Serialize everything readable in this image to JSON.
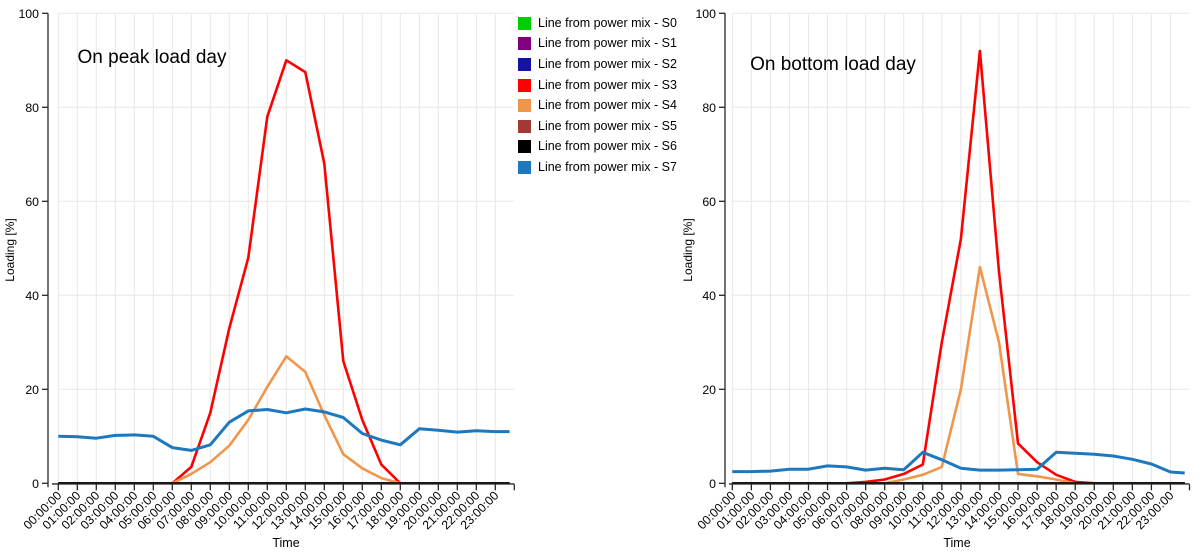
{
  "legend": {
    "position": "top-center-between-charts",
    "items": [
      {
        "id": "S0",
        "label": "Line from power mix - S0",
        "color": "#00CC00"
      },
      {
        "id": "S1",
        "label": "Line from power mix - S1",
        "color": "#800080"
      },
      {
        "id": "S2",
        "label": "Line from power mix - S2",
        "color": "#1512A8"
      },
      {
        "id": "S3",
        "label": "Line from power mix - S3",
        "color": "#FF0000"
      },
      {
        "id": "S4",
        "label": "Line from power mix - S4",
        "color": "#F0964C"
      },
      {
        "id": "S5",
        "label": "Line from power mix - S5",
        "color": "#A13A34"
      },
      {
        "id": "S6",
        "label": "Line from power mix - S6",
        "color": "#000000"
      },
      {
        "id": "S7",
        "label": "Line from power mix - S7",
        "color": "#1D78BE"
      }
    ]
  },
  "chart_data": [
    {
      "id": "peak-load-day-chart",
      "type": "line",
      "title": "On peak load day",
      "xlabel": "Time",
      "ylabel": "Loading [%]",
      "ylim": [
        0,
        100
      ],
      "xlim_hours": [
        0,
        24
      ],
      "grid": true,
      "yticks": [
        0,
        20,
        40,
        60,
        80,
        100
      ],
      "xticklabels": [
        "00:00:00",
        "01:00:00",
        "02:00:00",
        "03:00:00",
        "04:00:00",
        "05:00:00",
        "06:00:00",
        "07:00:00",
        "08:00:00",
        "09:00:00",
        "10:00:00",
        "11:00:00",
        "12:00:00",
        "13:00:00",
        "14:00:00",
        "15:00:00",
        "16:00:00",
        "17:00:00",
        "18:00:00",
        "19:00:00",
        "20:00:00",
        "21:00:00",
        "22:00:00",
        "23:00:00"
      ],
      "series": [
        {
          "id": "S0",
          "name": "Line from power mix - S0",
          "color": "#00CC00",
          "points": [
            [
              0,
              0
            ],
            [
              23.75,
              0
            ]
          ]
        },
        {
          "id": "S1",
          "name": "Line from power mix - S1",
          "color": "#800080",
          "points": [
            [
              0,
              0
            ],
            [
              23.75,
              0
            ]
          ]
        },
        {
          "id": "S2",
          "name": "Line from power mix - S2",
          "color": "#1512A8",
          "points": [
            [
              0,
              0
            ],
            [
              23.75,
              0
            ]
          ]
        },
        {
          "id": "S3",
          "name": "Line from power mix - S3",
          "color": "#FF0000",
          "points": [
            [
              6,
              0
            ],
            [
              7,
              3.5
            ],
            [
              8,
              15
            ],
            [
              9,
              33
            ],
            [
              10,
              48
            ],
            [
              11,
              78
            ],
            [
              12,
              90
            ],
            [
              13,
              87.5
            ],
            [
              14,
              68
            ],
            [
              15,
              26
            ],
            [
              16,
              13.5
            ],
            [
              17,
              4
            ],
            [
              18,
              0
            ]
          ]
        },
        {
          "id": "S4",
          "name": "Line from power mix - S4",
          "color": "#F0964C",
          "points": [
            [
              6,
              0
            ],
            [
              7,
              2
            ],
            [
              8,
              4.5
            ],
            [
              9,
              8
            ],
            [
              10,
              13.5
            ],
            [
              11,
              20.5
            ],
            [
              12,
              27
            ],
            [
              13,
              23.7
            ],
            [
              14,
              14.5
            ],
            [
              15,
              6.2
            ],
            [
              16,
              3.2
            ],
            [
              17,
              1.1
            ],
            [
              18,
              0
            ]
          ]
        },
        {
          "id": "S5",
          "name": "Line from power mix - S5",
          "color": "#A13A34",
          "points": [
            [
              0,
              0
            ],
            [
              23.75,
              0
            ]
          ]
        },
        {
          "id": "S6",
          "name": "Line from power mix - S6",
          "color": "#000000",
          "points": [
            [
              0,
              0
            ],
            [
              23.75,
              0
            ]
          ]
        },
        {
          "id": "S7",
          "name": "Line from power mix - S7",
          "color": "#1D78BE",
          "points": [
            [
              0,
              10
            ],
            [
              1,
              9.9
            ],
            [
              2,
              9.6
            ],
            [
              3,
              10.2
            ],
            [
              4,
              10.3
            ],
            [
              5,
              10
            ],
            [
              6,
              7.6
            ],
            [
              7,
              7
            ],
            [
              8,
              8.2
            ],
            [
              9,
              13
            ],
            [
              10,
              15.4
            ],
            [
              11,
              15.7
            ],
            [
              12,
              15
            ],
            [
              13,
              15.8
            ],
            [
              14,
              15.2
            ],
            [
              15,
              14
            ],
            [
              16,
              10.6
            ],
            [
              17,
              9.2
            ],
            [
              18,
              8.2
            ],
            [
              19,
              11.6
            ],
            [
              20,
              11.3
            ],
            [
              21,
              10.9
            ],
            [
              22,
              11.2
            ],
            [
              23,
              11
            ],
            [
              23.75,
              11
            ]
          ]
        }
      ]
    },
    {
      "id": "bottom-load-day-chart",
      "type": "line",
      "title": "On bottom load day",
      "xlabel": "Time",
      "ylabel": "Loading [%]",
      "ylim": [
        0,
        100
      ],
      "xlim_hours": [
        0,
        24
      ],
      "grid": true,
      "yticks": [
        0,
        20,
        40,
        60,
        80,
        100
      ],
      "xticklabels": [
        "00:00:00",
        "01:00:00",
        "02:00:00",
        "03:00:00",
        "04:00:00",
        "05:00:00",
        "06:00:00",
        "07:00:00",
        "08:00:00",
        "09:00:00",
        "10:00:00",
        "11:00:00",
        "12:00:00",
        "13:00:00",
        "14:00:00",
        "15:00:00",
        "16:00:00",
        "17:00:00",
        "18:00:00",
        "19:00:00",
        "20:00:00",
        "21:00:00",
        "22:00:00",
        "23:00:00"
      ],
      "series": [
        {
          "id": "S0",
          "name": "Line from power mix - S0",
          "color": "#00CC00",
          "points": [
            [
              0,
              0
            ],
            [
              23.75,
              0
            ]
          ]
        },
        {
          "id": "S1",
          "name": "Line from power mix - S1",
          "color": "#800080",
          "points": [
            [
              0,
              0
            ],
            [
              23.75,
              0
            ]
          ]
        },
        {
          "id": "S2",
          "name": "Line from power mix - S2",
          "color": "#1512A8",
          "points": [
            [
              0,
              0
            ],
            [
              23.75,
              0
            ]
          ]
        },
        {
          "id": "S3",
          "name": "Line from power mix - S3",
          "color": "#FF0000",
          "points": [
            [
              6,
              0
            ],
            [
              7,
              0.3
            ],
            [
              8,
              0.8
            ],
            [
              9,
              2
            ],
            [
              10,
              4
            ],
            [
              11,
              30
            ],
            [
              12,
              52
            ],
            [
              13,
              92
            ],
            [
              14,
              45
            ],
            [
              15,
              8.5
            ],
            [
              16,
              4.5
            ],
            [
              17,
              1.8
            ],
            [
              18,
              0.3
            ],
            [
              19,
              0
            ]
          ]
        },
        {
          "id": "S4",
          "name": "Line from power mix - S4",
          "color": "#F0964C",
          "points": [
            [
              8,
              0
            ],
            [
              9,
              0.8
            ],
            [
              10,
              1.8
            ],
            [
              11,
              3.5
            ],
            [
              12,
              20
            ],
            [
              13,
              46
            ],
            [
              14,
              30
            ],
            [
              15,
              2
            ],
            [
              16,
              1.5
            ],
            [
              17,
              0.8
            ],
            [
              18,
              0
            ]
          ]
        },
        {
          "id": "S5",
          "name": "Line from power mix - S5",
          "color": "#A13A34",
          "points": [
            [
              0,
              0
            ],
            [
              23.75,
              0
            ]
          ]
        },
        {
          "id": "S6",
          "name": "Line from power mix - S6",
          "color": "#000000",
          "points": [
            [
              0,
              0
            ],
            [
              23.75,
              0
            ]
          ]
        },
        {
          "id": "S7",
          "name": "Line from power mix - S7",
          "color": "#1D78BE",
          "points": [
            [
              0,
              2.5
            ],
            [
              1,
              2.5
            ],
            [
              2,
              2.6
            ],
            [
              3,
              3
            ],
            [
              4,
              3
            ],
            [
              5,
              3.7
            ],
            [
              6,
              3.5
            ],
            [
              7,
              2.8
            ],
            [
              8,
              3.2
            ],
            [
              9,
              2.9
            ],
            [
              10,
              6.6
            ],
            [
              11,
              5
            ],
            [
              12,
              3.2
            ],
            [
              13,
              2.8
            ],
            [
              14,
              2.8
            ],
            [
              15,
              2.9
            ],
            [
              16,
              3
            ],
            [
              17,
              6.6
            ],
            [
              18,
              6.4
            ],
            [
              19,
              6.2
            ],
            [
              20,
              5.8
            ],
            [
              21,
              5.1
            ],
            [
              22,
              4.1
            ],
            [
              23,
              2.4
            ],
            [
              23.75,
              2.2
            ]
          ]
        }
      ]
    }
  ]
}
